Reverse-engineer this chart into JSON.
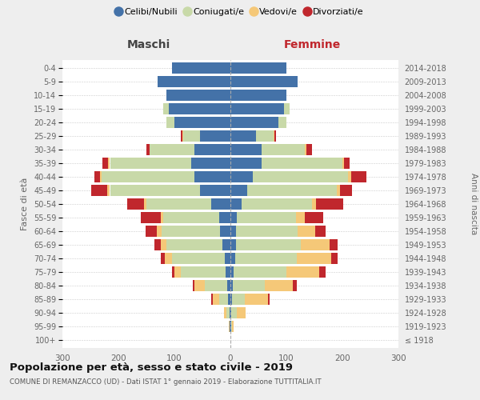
{
  "age_groups": [
    "100+",
    "95-99",
    "90-94",
    "85-89",
    "80-84",
    "75-79",
    "70-74",
    "65-69",
    "60-64",
    "55-59",
    "50-54",
    "45-49",
    "40-44",
    "35-39",
    "30-34",
    "25-29",
    "20-24",
    "15-19",
    "10-14",
    "5-9",
    "0-4"
  ],
  "birth_years": [
    "≤ 1918",
    "1919-1923",
    "1924-1928",
    "1929-1933",
    "1934-1938",
    "1939-1943",
    "1944-1948",
    "1949-1953",
    "1954-1958",
    "1959-1963",
    "1964-1968",
    "1969-1973",
    "1974-1978",
    "1979-1983",
    "1984-1988",
    "1989-1993",
    "1994-1998",
    "1999-2003",
    "2004-2008",
    "2009-2013",
    "2014-2018"
  ],
  "colors": {
    "celibe": "#4472a8",
    "coniugato": "#c8d9a8",
    "vedovo": "#f5c878",
    "divorziato": "#c0272d"
  },
  "maschi": {
    "celibe": [
      0,
      1,
      2,
      5,
      6,
      8,
      10,
      14,
      18,
      20,
      35,
      55,
      65,
      70,
      65,
      55,
      100,
      110,
      115,
      130,
      105
    ],
    "coniugato": [
      0,
      1,
      5,
      15,
      40,
      80,
      95,
      100,
      105,
      100,
      115,
      160,
      165,
      145,
      80,
      30,
      15,
      10,
      0,
      0,
      0
    ],
    "vedovo": [
      0,
      1,
      5,
      12,
      18,
      12,
      12,
      10,
      8,
      5,
      5,
      5,
      3,
      3,
      0,
      1,
      0,
      0,
      0,
      0,
      0
    ],
    "divorziato": [
      0,
      0,
      0,
      2,
      3,
      5,
      8,
      12,
      20,
      35,
      30,
      28,
      10,
      10,
      5,
      2,
      0,
      0,
      0,
      0,
      0
    ]
  },
  "femmine": {
    "nubile": [
      0,
      1,
      2,
      3,
      4,
      5,
      8,
      10,
      10,
      12,
      20,
      30,
      40,
      55,
      55,
      45,
      85,
      95,
      100,
      120,
      100
    ],
    "coniugata": [
      0,
      2,
      10,
      22,
      58,
      95,
      110,
      115,
      110,
      105,
      125,
      160,
      170,
      145,
      78,
      32,
      15,
      10,
      0,
      0,
      0
    ],
    "vedova": [
      0,
      2,
      15,
      42,
      50,
      58,
      62,
      52,
      32,
      16,
      8,
      5,
      5,
      3,
      2,
      1,
      0,
      0,
      0,
      0,
      0
    ],
    "divorziata": [
      0,
      0,
      0,
      3,
      6,
      12,
      12,
      14,
      18,
      32,
      48,
      22,
      28,
      10,
      10,
      3,
      0,
      0,
      0,
      0,
      0
    ]
  },
  "xlim": 300,
  "title": "Popolazione per età, sesso e stato civile - 2019",
  "subtitle": "COMUNE DI REMANZACCO (UD) - Dati ISTAT 1° gennaio 2019 - Elaborazione TUTTITALIA.IT",
  "xlabel_left": "Maschi",
  "xlabel_right": "Femmine",
  "ylabel": "Fasce di età",
  "ylabel_right": "Anni di nascita",
  "legend_labels": [
    "Celibi/Nubili",
    "Coniugati/e",
    "Vedovi/e",
    "Divorziati/e"
  ],
  "background_color": "#eeeeee",
  "plot_bg_color": "#ffffff"
}
